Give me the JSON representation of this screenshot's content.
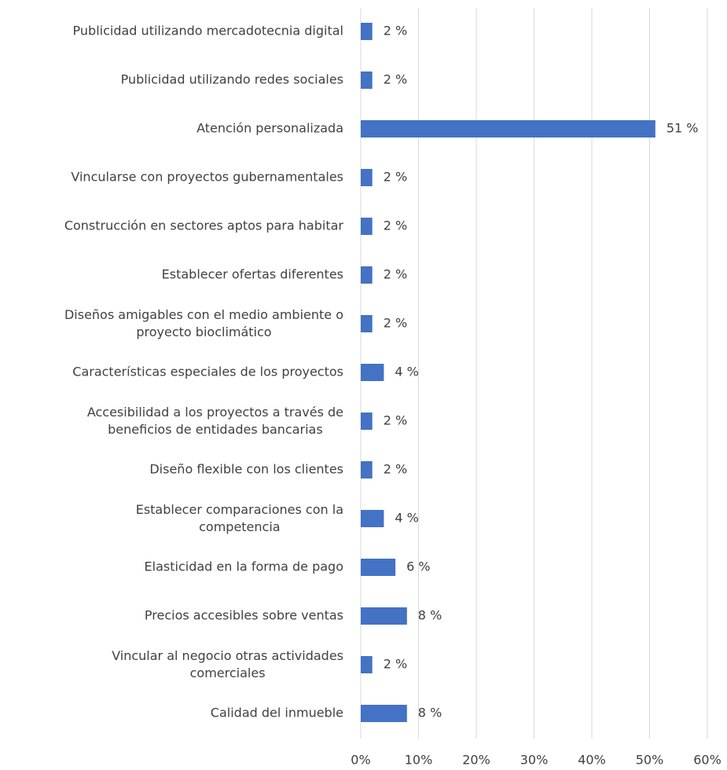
{
  "chart_data": {
    "type": "barh",
    "categories": [
      "Publicidad utilizando mercadotecnia digital",
      "Publicidad utilizando redes sociales",
      "Atención personalizada",
      "Vincularse con proyectos gubernamentales",
      "Construcción en sectores aptos para habitar",
      "Establecer ofertas diferentes",
      "Diseños amigables con el medio ambiente o\nproyecto bioclimático",
      "Características especiales de los proyectos",
      "Accesibilidad a los proyectos a través de\nbeneficios de entidades bancarias",
      "Diseño flexible con los clientes",
      "Establecer comparaciones con la\ncompetencia",
      "Elasticidad en la forma de pago",
      "Precios accesibles sobre ventas",
      "Vincular al  negocio otras actividades\ncomerciales",
      "Calidad del inmueble"
    ],
    "values": [
      2,
      2,
      51,
      2,
      2,
      2,
      2,
      4,
      2,
      2,
      4,
      6,
      8,
      2,
      8
    ],
    "value_labels": [
      "2 %",
      "2 %",
      "51 %",
      "2 %",
      "2 %",
      "2 %",
      "2 %",
      "4 %",
      "2 %",
      "2 %",
      "4 %",
      "6 %",
      "8 %",
      "2 %",
      "8 %"
    ],
    "color": "#4472c4",
    "xlim": [
      0,
      60
    ],
    "xticks": [
      {
        "value": 0,
        "label": "0%"
      },
      {
        "value": 10,
        "label": "10%"
      },
      {
        "value": 20,
        "label": "20%"
      },
      {
        "value": 30,
        "label": "30%"
      },
      {
        "value": 40,
        "label": "40%"
      },
      {
        "value": 50,
        "label": "50%"
      },
      {
        "value": 60,
        "label": "60%"
      }
    ],
    "grid": true
  }
}
